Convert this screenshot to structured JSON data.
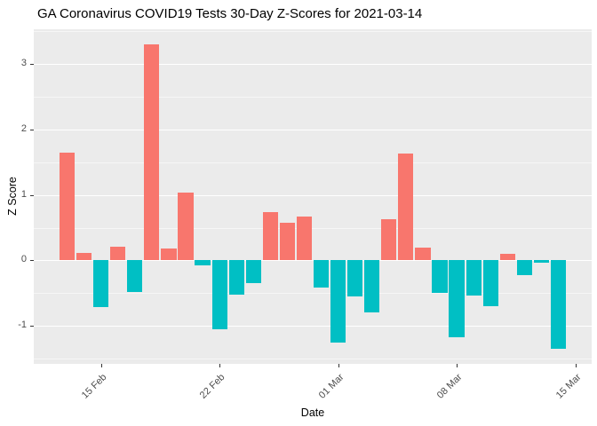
{
  "chart_data": {
    "type": "bar",
    "title": "GA Coronavirus COVID19 Tests 30-Day Z-Scores for 2021-03-14",
    "xlabel": "Date",
    "ylabel": "Z Score",
    "ylim": [
      -1.58,
      3.53
    ],
    "yticks": [
      -1,
      0,
      1,
      2,
      3
    ],
    "ytick_labels": [
      "-1",
      "0",
      "1",
      "2",
      "3"
    ],
    "y_minor": [
      -1.5,
      -0.5,
      0.5,
      1.5,
      2.5,
      3.5
    ],
    "x_ticks": [
      {
        "label": "15 Feb",
        "day": 2
      },
      {
        "label": "22 Feb",
        "day": 9
      },
      {
        "label": "01 Mar",
        "day": 16
      },
      {
        "label": "08 Mar",
        "day": 23
      },
      {
        "label": "15 Mar",
        "day": 30
      }
    ],
    "values": [
      1.65,
      0.11,
      -0.71,
      0.21,
      -0.48,
      3.3,
      0.18,
      1.04,
      -0.07,
      -1.05,
      -0.52,
      -0.34,
      0.74,
      0.57,
      0.67,
      -0.42,
      -1.25,
      -0.55,
      -0.79,
      0.63,
      1.63,
      0.2,
      -0.5,
      -1.18,
      -0.53,
      -0.7,
      0.1,
      -0.23,
      -0.03,
      -1.35
    ],
    "colors": {
      "positive": "#F8766D",
      "negative": "#00BFC4",
      "panel_bg": "#EBEBEB",
      "grid_major": "#FFFFFF",
      "axis_text": "#4D4D4D"
    },
    "legend": "none",
    "grid": "on"
  }
}
